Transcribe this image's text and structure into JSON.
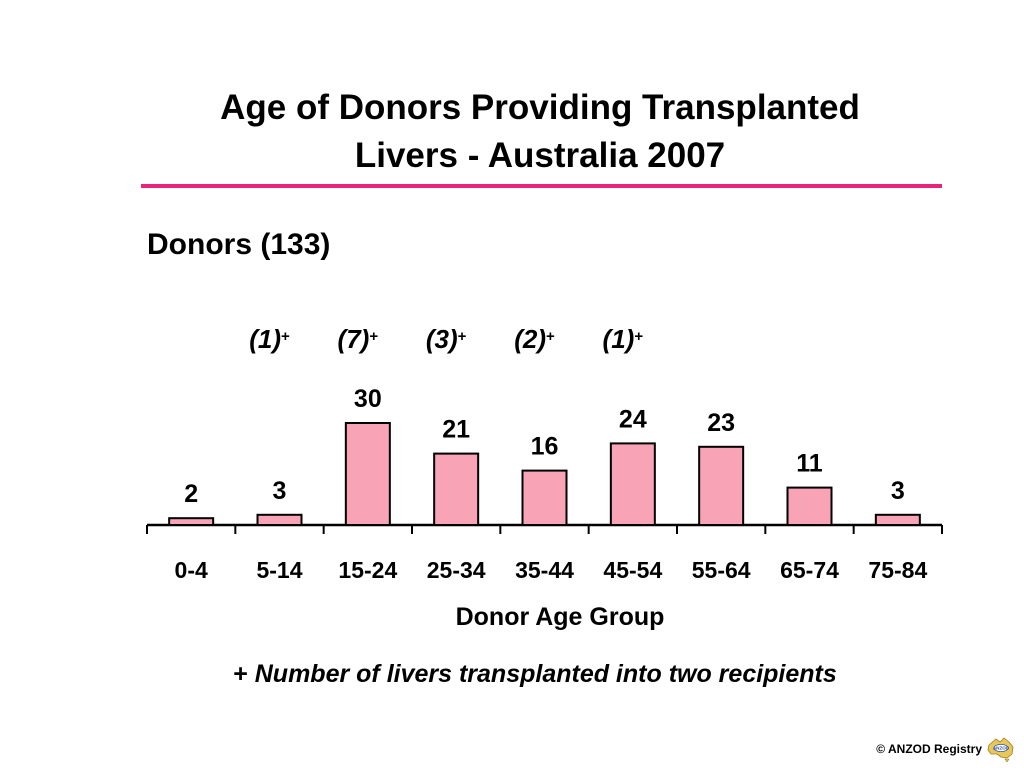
{
  "chart_data": {
    "type": "bar",
    "title": "Age of Donors Providing Transplanted Livers  -  Australia 2007",
    "subtitle": "Donors (133)",
    "categories": [
      "0-4",
      "5-14",
      "15-24",
      "25-34",
      "35-44",
      "45-54",
      "55-64",
      "65-74",
      "75-84"
    ],
    "values": [
      2,
      3,
      30,
      21,
      16,
      24,
      23,
      11,
      3
    ],
    "split_annotations": [
      "",
      "(1)",
      "(7)",
      "(3)",
      "(2)",
      "(1)",
      "",
      "",
      ""
    ],
    "split_marker": "+",
    "xlabel": "Donor  Age  Group",
    "ylabel": "",
    "ylim": [
      0,
      35
    ],
    "bar_color": "#f9a3b6",
    "grid": false
  },
  "slide": {
    "title_line1": "Age of Donors Providing Transplanted",
    "title_line2": "Livers  -  Australia 2007",
    "subtitle": "Donors (133)",
    "footnote_marker": "+",
    "footnote_text": " Number of livers transplanted into two recipients",
    "copyright": "© ANZOD Registry",
    "logo_text": "ANZOD",
    "accent_color": "#e8237a"
  }
}
